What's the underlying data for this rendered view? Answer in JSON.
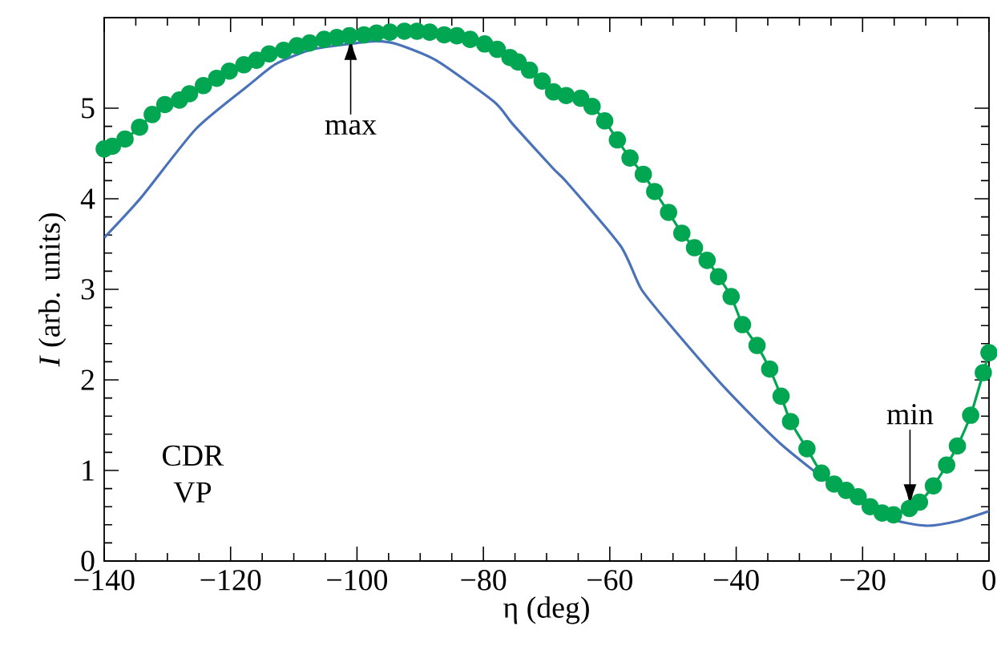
{
  "chart_data": {
    "type": "line",
    "xlabel": "η  (deg)",
    "ylabel": "*I* (arb. units)",
    "xlim": [
      -140,
      0
    ],
    "ylim": [
      0,
      6
    ],
    "xticks": [
      {
        "value": -140,
        "label": "−140"
      },
      {
        "value": -120,
        "label": "−120"
      },
      {
        "value": -100,
        "label": "−100"
      },
      {
        "value": -80,
        "label": "−80"
      },
      {
        "value": -60,
        "label": "−60"
      },
      {
        "value": -40,
        "label": "−40"
      },
      {
        "value": -20,
        "label": "−20"
      },
      0
    ],
    "yticks": [
      0,
      1,
      2,
      3,
      4,
      5
    ],
    "grid": false,
    "line_style": "solid",
    "series": [
      {
        "color": "#4a72b8",
        "marker": "none",
        "x": [
          -140,
          -134.2,
          -125.5,
          -117.2,
          -112.8,
          -107,
          -100,
          -97,
          -93.8,
          -87.5,
          -78.3,
          -75.3,
          -68.9,
          -66.9,
          -58.3,
          -55,
          -49.9,
          -41.5,
          -32.9,
          -24.5,
          -16.1,
          -10,
          -5,
          0
        ],
        "values": [
          3.57,
          4.01,
          4.77,
          5.25,
          5.49,
          5.65,
          5.72,
          5.74,
          5.71,
          5.53,
          5.07,
          4.82,
          4.33,
          4.19,
          3.48,
          3.0,
          2.56,
          1.89,
          1.29,
          0.83,
          0.48,
          0.39,
          0.44,
          0.55
        ]
      },
      {
        "color": "#00a651",
        "marker": "circle",
        "x": [
          -140,
          -138.7,
          -136.7,
          -134.4,
          -132.4,
          -130.4,
          -128.1,
          -126.5,
          -124.3,
          -122.2,
          -120.2,
          -117.9,
          -115.9,
          -113.9,
          -111.6,
          -109.5,
          -107.5,
          -105.2,
          -103.2,
          -101.2,
          -98.9,
          -96.9,
          -94.8,
          -92.5,
          -90.5,
          -88.5,
          -86.2,
          -84.2,
          -82.1,
          -79.8,
          -77.8,
          -75.8,
          -74.5,
          -72.7,
          -70.7,
          -68.9,
          -66.9,
          -64.6,
          -62.8,
          -60.8,
          -58.8,
          -56.8,
          -54.7,
          -52.9,
          -50.7,
          -48.6,
          -46.6,
          -44.6,
          -42.8,
          -40.8,
          -39,
          -36.7,
          -34.7,
          -32.9,
          -31.4,
          -28.8,
          -26.5,
          -24.5,
          -22.6,
          -20.7,
          -18.8,
          -16.9,
          -15.1,
          -12.6,
          -11,
          -8.8,
          -6.7,
          -5,
          -2.9,
          -0.9,
          0
        ],
        "values": [
          4.55,
          4.58,
          4.66,
          4.79,
          4.93,
          5.04,
          5.09,
          5.16,
          5.25,
          5.33,
          5.41,
          5.48,
          5.53,
          5.6,
          5.64,
          5.69,
          5.72,
          5.76,
          5.78,
          5.8,
          5.81,
          5.83,
          5.84,
          5.85,
          5.85,
          5.84,
          5.81,
          5.8,
          5.76,
          5.71,
          5.65,
          5.56,
          5.51,
          5.42,
          5.3,
          5.18,
          5.14,
          5.11,
          5.02,
          4.86,
          4.65,
          4.45,
          4.27,
          4.08,
          3.85,
          3.62,
          3.46,
          3.32,
          3.14,
          2.92,
          2.61,
          2.38,
          2.12,
          1.82,
          1.54,
          1.24,
          0.97,
          0.85,
          0.78,
          0.71,
          0.6,
          0.53,
          0.51,
          0.58,
          0.65,
          0.83,
          1.06,
          1.27,
          1.61,
          2.08,
          2.3
        ]
      }
    ],
    "annotations": [
      {
        "text": "max",
        "x": -101,
        "y": 5.78
      },
      {
        "text": "min",
        "x": -12.5,
        "y": 0.6
      },
      "CDR",
      "VP"
    ]
  }
}
